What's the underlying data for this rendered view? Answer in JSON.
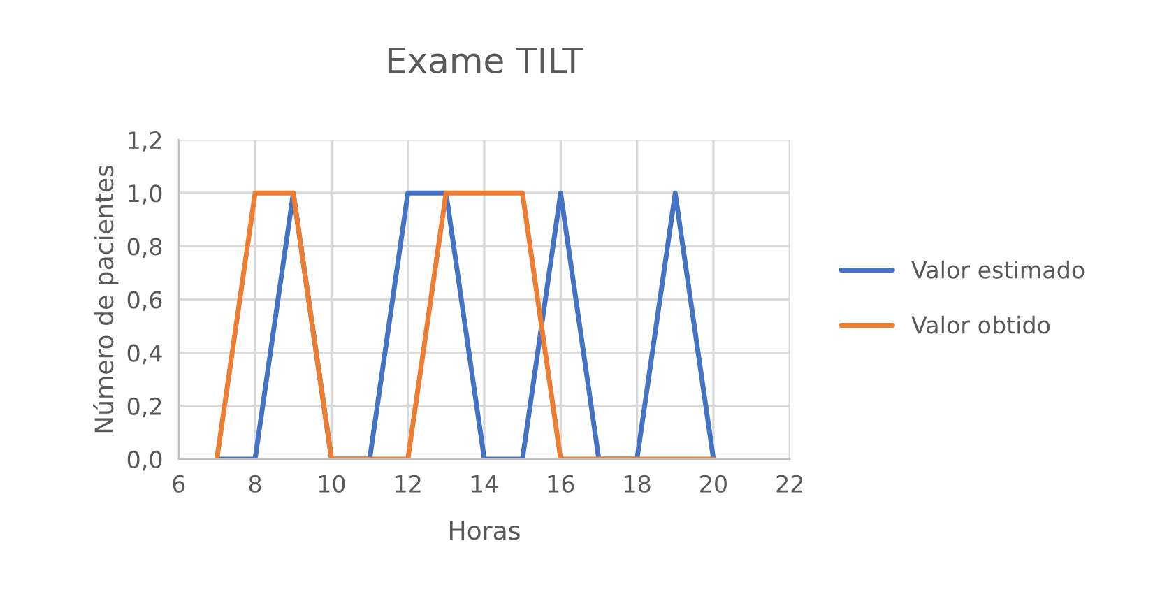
{
  "chart_data": {
    "type": "line",
    "title": "Exame TILT",
    "xlabel": "Horas",
    "ylabel": "Número de pacientes",
    "x": [
      7,
      8,
      9,
      10,
      11,
      12,
      13,
      14,
      15,
      16,
      17,
      18,
      19,
      20
    ],
    "series": [
      {
        "name": "Valor estimado",
        "color": "#4472c4",
        "values": [
          0,
          0,
          1,
          0,
          0,
          1,
          1,
          0,
          0,
          1,
          0,
          0,
          1,
          0
        ]
      },
      {
        "name": "Valor obtido",
        "color": "#ed7d31",
        "values": [
          0,
          1,
          1,
          0,
          0,
          0,
          1,
          1,
          1,
          0,
          0,
          0,
          0,
          0
        ]
      }
    ],
    "xlim": [
      6,
      22
    ],
    "xticks": [
      6,
      8,
      10,
      12,
      14,
      16,
      18,
      20,
      22
    ],
    "ylim": [
      0,
      1.2
    ],
    "yticks": [
      {
        "value": 0,
        "label": "0,0"
      },
      {
        "value": 0.2,
        "label": "0,2"
      },
      {
        "value": 0.4,
        "label": "0,4"
      },
      {
        "value": 0.6,
        "label": "0,6"
      },
      {
        "value": 0.8,
        "label": "0,8"
      },
      {
        "value": 1.0,
        "label": "1,0"
      },
      {
        "value": 1.2,
        "label": "1,2"
      }
    ],
    "grid": true,
    "legend": "right",
    "marker": "none",
    "line_style": "solid"
  }
}
